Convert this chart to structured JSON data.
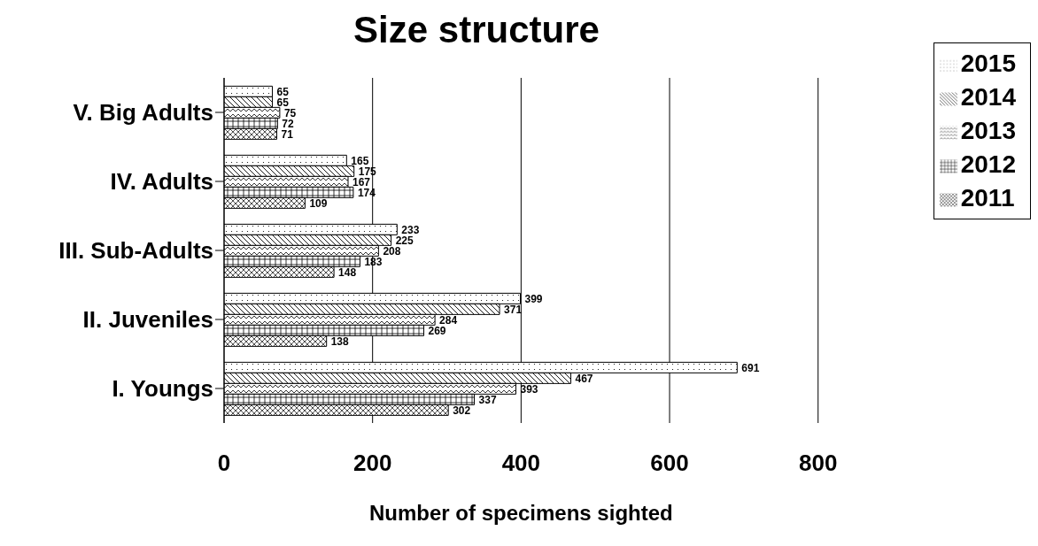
{
  "chart_data": {
    "type": "bar",
    "orientation": "horizontal",
    "title": "Size structure",
    "xlabel": "Number of specimens sighted",
    "categories": [
      "V. Big Adults",
      "IV. Adults",
      "III. Sub-Adults",
      "II. Juveniles",
      "I. Youngs"
    ],
    "series": [
      {
        "name": "2015",
        "color": "#000000",
        "values": [
          65,
          165,
          233,
          399,
          691
        ]
      },
      {
        "name": "2014",
        "color": "#000000",
        "values": [
          65,
          175,
          225,
          371,
          467
        ]
      },
      {
        "name": "2013",
        "color": "#000000",
        "values": [
          75,
          167,
          208,
          284,
          393
        ]
      },
      {
        "name": "2012",
        "color": "#000000",
        "values": [
          72,
          174,
          183,
          269,
          337
        ]
      },
      {
        "name": "2011",
        "color": "#000000",
        "values": [
          71,
          109,
          148,
          138,
          302
        ]
      }
    ],
    "xlim": [
      0,
      800
    ],
    "xticks": [
      0,
      200,
      400,
      600,
      800
    ],
    "grid": "x",
    "legend": "top right",
    "data_labels": true
  }
}
